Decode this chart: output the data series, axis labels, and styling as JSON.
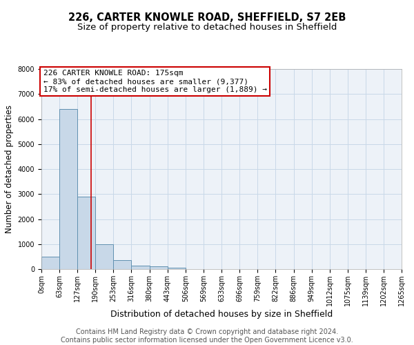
{
  "title": "226, CARTER KNOWLE ROAD, SHEFFIELD, S7 2EB",
  "subtitle": "Size of property relative to detached houses in Sheffield",
  "xlabel": "Distribution of detached houses by size in Sheffield",
  "ylabel": "Number of detached properties",
  "bin_edges": [
    0,
    63,
    127,
    190,
    253,
    316,
    380,
    443,
    506,
    569,
    633,
    696,
    759,
    822,
    886,
    949,
    1012,
    1075,
    1139,
    1202,
    1265
  ],
  "bar_heights": [
    500,
    6400,
    2900,
    1000,
    350,
    150,
    100,
    50,
    0,
    0,
    0,
    0,
    0,
    0,
    0,
    0,
    0,
    0,
    0,
    0
  ],
  "bar_color": "#c8d8e8",
  "bar_edgecolor": "#6090b0",
  "grid_color": "#c8d8e8",
  "property_line_x": 175,
  "property_line_color": "#cc0000",
  "annotation_text": "226 CARTER KNOWLE ROAD: 175sqm\n← 83% of detached houses are smaller (9,377)\n17% of semi-detached houses are larger (1,889) →",
  "annotation_box_edgecolor": "#cc0000",
  "annotation_box_facecolor": "#ffffff",
  "ylim": [
    0,
    8000
  ],
  "yticks": [
    0,
    1000,
    2000,
    3000,
    4000,
    5000,
    6000,
    7000,
    8000
  ],
  "footer_text": "Contains HM Land Registry data © Crown copyright and database right 2024.\nContains public sector information licensed under the Open Government Licence v3.0.",
  "title_fontsize": 10.5,
  "subtitle_fontsize": 9.5,
  "xlabel_fontsize": 9,
  "ylabel_fontsize": 8.5,
  "tick_fontsize": 7,
  "annotation_fontsize": 8,
  "footer_fontsize": 7,
  "background_color": "#ffffff",
  "plot_bg_color": "#edf2f8"
}
